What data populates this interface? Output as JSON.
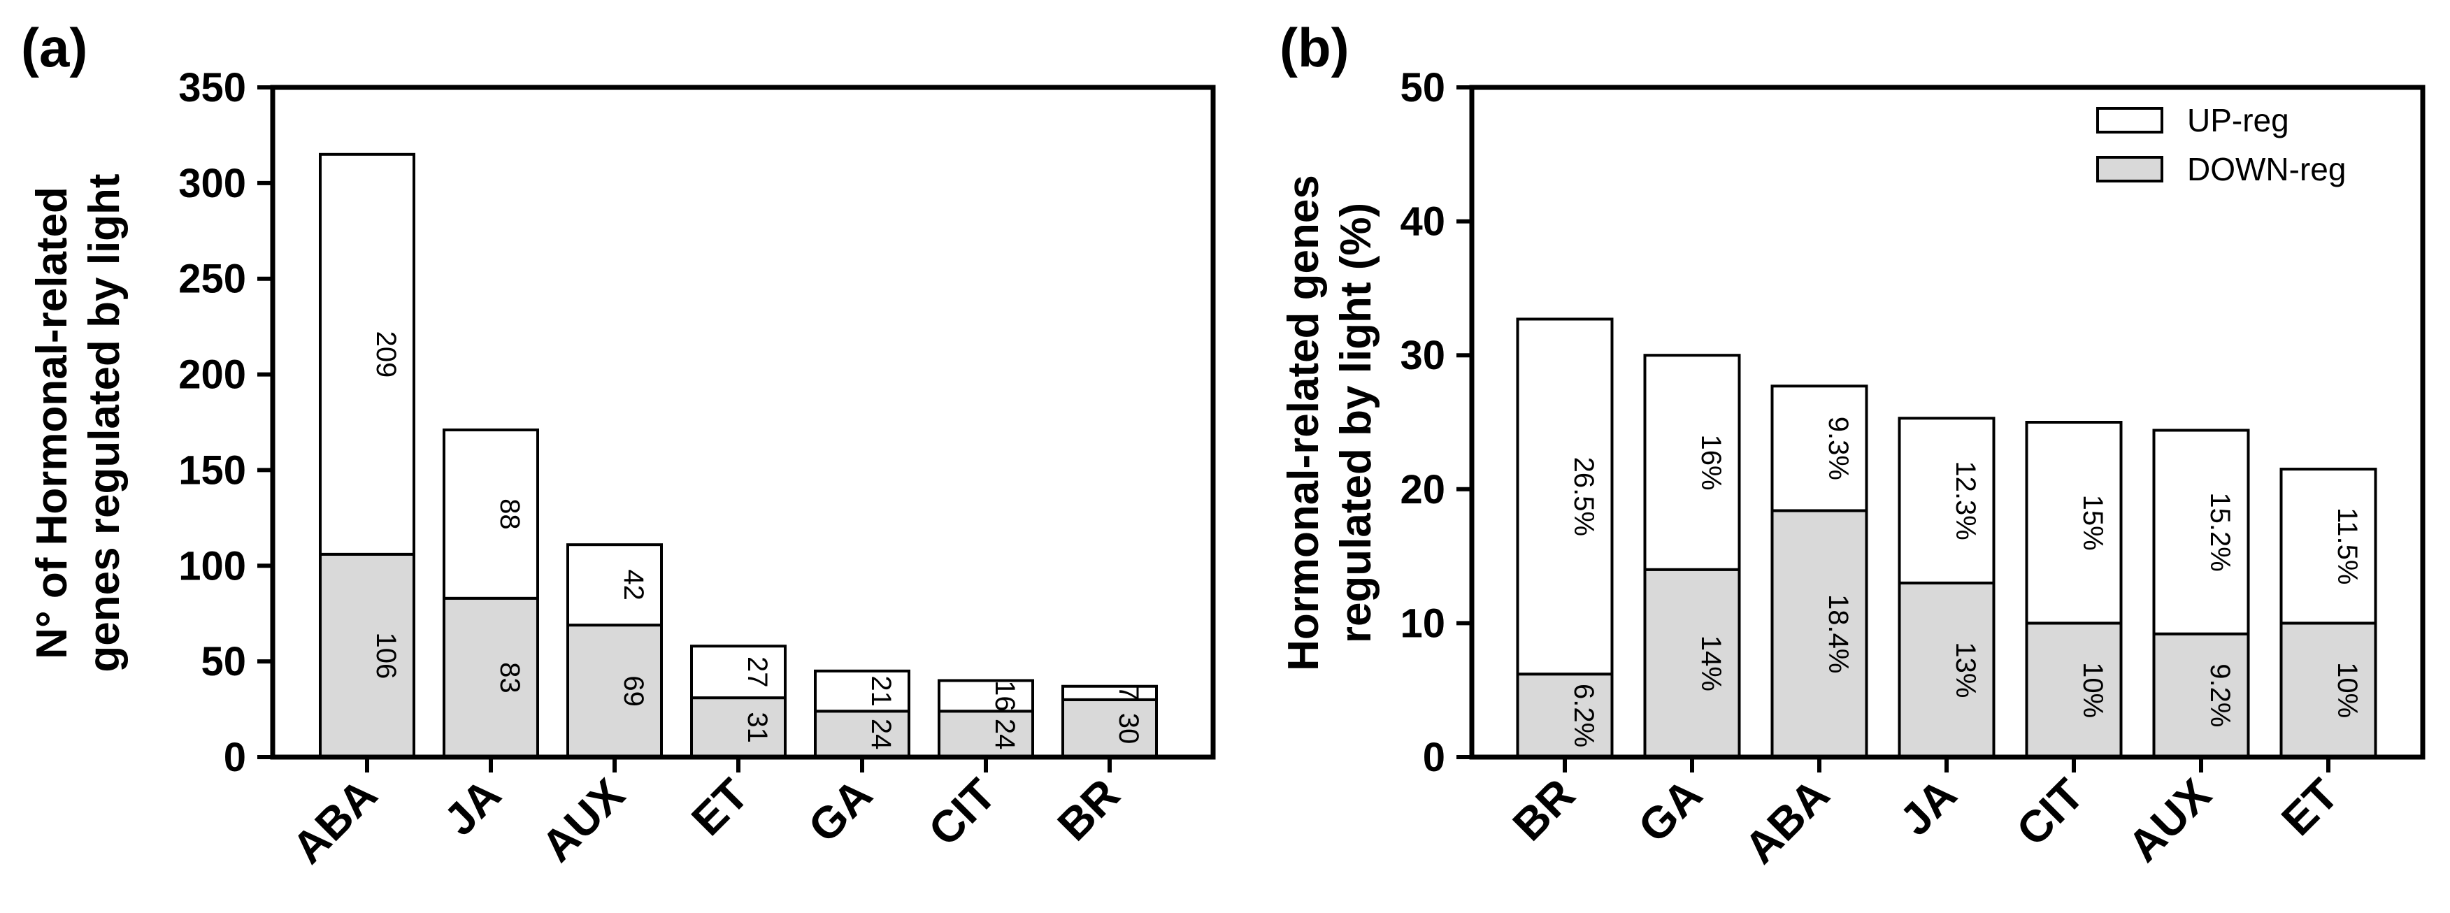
{
  "chart_data": [
    {
      "type": "bar",
      "stacked": true,
      "panel": "(a)",
      "ylabel_lines": [
        "N° of Hormonal-related",
        "genes regulated by light"
      ],
      "ylim": [
        0,
        350
      ],
      "yticks": [
        0,
        50,
        100,
        150,
        200,
        250,
        300,
        350
      ],
      "categories": [
        "ABA",
        "JA",
        "AUX",
        "ET",
        "GA",
        "CIT",
        "BR"
      ],
      "series": [
        {
          "name": "DOWN-reg",
          "color": "#d9d9d9",
          "values": [
            106,
            83,
            69,
            31,
            24,
            24,
            30
          ],
          "labels": [
            "106",
            "83",
            "69",
            "31",
            "24",
            "24",
            "30"
          ]
        },
        {
          "name": "UP-reg",
          "color": "#ffffff",
          "values": [
            209,
            88,
            42,
            27,
            21,
            16,
            7
          ],
          "labels": [
            "209",
            "88",
            "42",
            "27",
            "21",
            "16",
            "7"
          ]
        }
      ]
    },
    {
      "type": "bar",
      "stacked": true,
      "panel": "(b)",
      "ylabel_lines": [
        "Hormonal-related genes",
        "regulated by light (%)"
      ],
      "ylim": [
        0,
        50
      ],
      "yticks": [
        0,
        10,
        20,
        30,
        40,
        50
      ],
      "categories": [
        "BR",
        "GA",
        "ABA",
        "JA",
        "CIT",
        "AUX",
        "ET"
      ],
      "series": [
        {
          "name": "DOWN-reg",
          "color": "#d9d9d9",
          "values": [
            6.2,
            14,
            18.4,
            13,
            10,
            9.2,
            10
          ],
          "labels": [
            "6.2%",
            "14%",
            "18.4%",
            "13%",
            "10%",
            "9.2%",
            "10%"
          ]
        },
        {
          "name": "UP-reg",
          "color": "#ffffff",
          "values": [
            26.5,
            16,
            9.3,
            12.3,
            15,
            15.2,
            11.5
          ],
          "labels": [
            "26.5%",
            "16%",
            "9.3%",
            "12.3%",
            "15%",
            "15.2%",
            "11.5%"
          ]
        }
      ],
      "legend": {
        "position": "top-right",
        "entries": [
          "UP-reg",
          "DOWN-reg"
        ]
      }
    }
  ]
}
